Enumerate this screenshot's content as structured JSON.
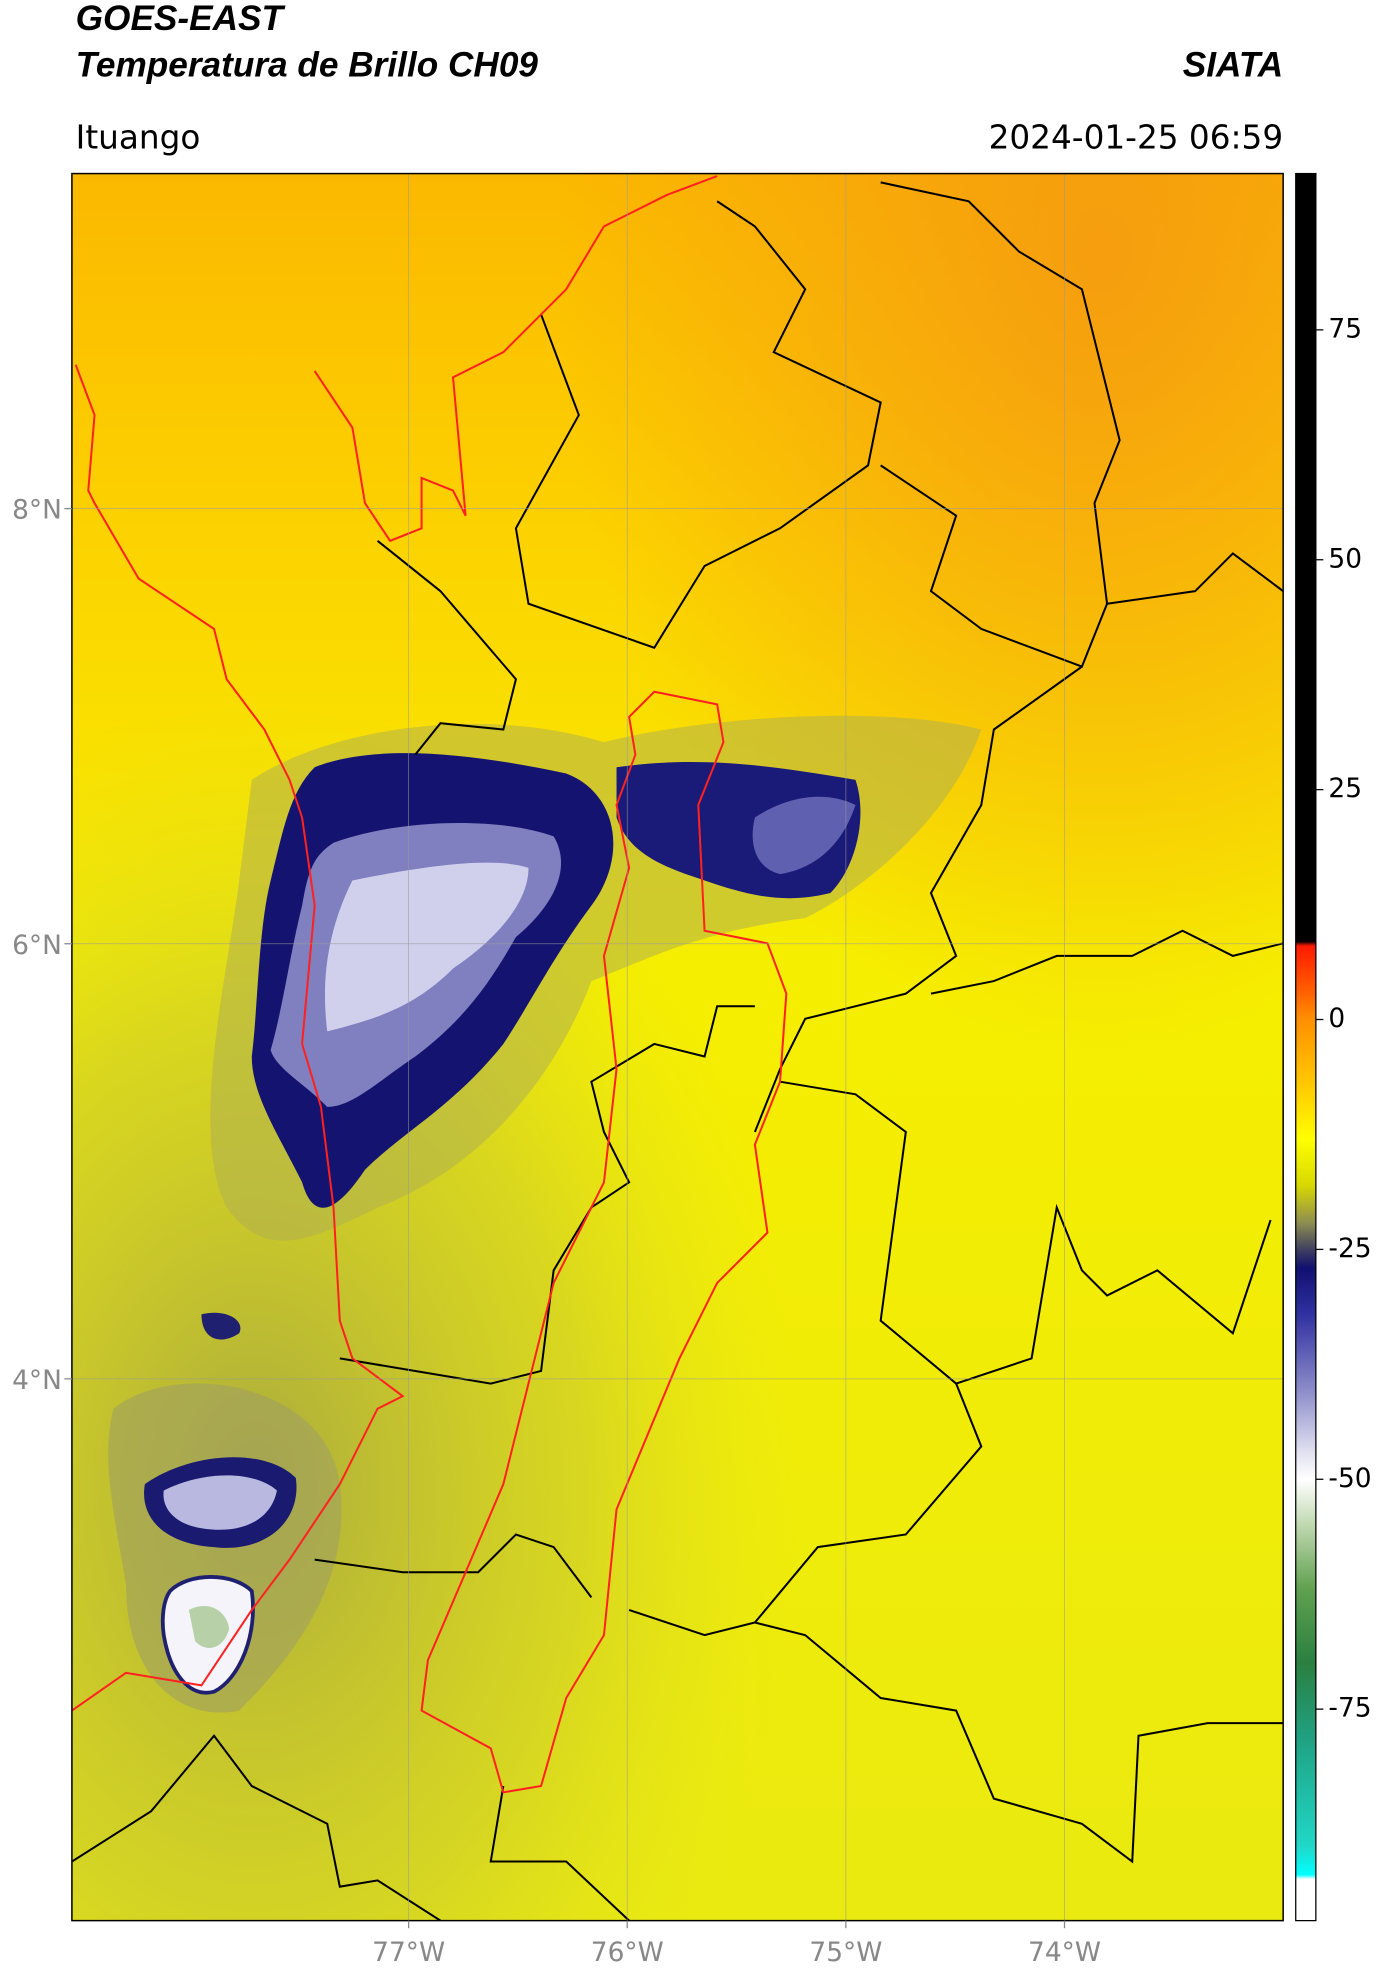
{
  "header": {
    "title": "GOES-EAST",
    "subtitle": "Temperatura de Brillo CH09",
    "source": "SIATA",
    "location": "Ituango",
    "datetime": "2024-01-25 06:59"
  },
  "map": {
    "xlim": [
      -78.54,
      -73.0
    ],
    "ylim": [
      1.51,
      9.54
    ],
    "xticks": [
      {
        "value": -77,
        "label": "77°W"
      },
      {
        "value": -76,
        "label": "76°W"
      },
      {
        "value": -75,
        "label": "75°W"
      },
      {
        "value": -74,
        "label": "74°W"
      }
    ],
    "yticks": [
      {
        "value": 8,
        "label": "8°N"
      },
      {
        "value": 6,
        "label": "6°N"
      },
      {
        "value": 4,
        "label": "4°N"
      }
    ],
    "grid": true
  },
  "colorbar": {
    "lim": [
      -98,
      92
    ],
    "ticks": [
      75,
      50,
      25,
      0,
      -25,
      -50,
      -75
    ],
    "stops": [
      {
        "value": 92,
        "color": "#000000"
      },
      {
        "value": 8.5,
        "color": "#000000"
      },
      {
        "value": 8,
        "color": "#ff1a00"
      },
      {
        "value": 3,
        "color": "#ff6000"
      },
      {
        "value": 0,
        "color": "#ff9000"
      },
      {
        "value": -8,
        "color": "#ffd000"
      },
      {
        "value": -13,
        "color": "#ffff00"
      },
      {
        "value": -18,
        "color": "#d8d800"
      },
      {
        "value": -22,
        "color": "#909050"
      },
      {
        "value": -25,
        "color": "#404060"
      },
      {
        "value": -27,
        "color": "#101070"
      },
      {
        "value": -32,
        "color": "#3030a0"
      },
      {
        "value": -40,
        "color": "#8888c8"
      },
      {
        "value": -47,
        "color": "#e0e0f0"
      },
      {
        "value": -50,
        "color": "#ffffff"
      },
      {
        "value": -55,
        "color": "#c0d8b0"
      },
      {
        "value": -62,
        "color": "#60a050"
      },
      {
        "value": -70,
        "color": "#2a8040"
      },
      {
        "value": -78,
        "color": "#20a080"
      },
      {
        "value": -90,
        "color": "#20d8c8"
      },
      {
        "value": -93,
        "color": "#00ffff"
      },
      {
        "value": -93.5,
        "color": "#ffffff"
      },
      {
        "value": -98,
        "color": "#ffffff"
      }
    ]
  }
}
